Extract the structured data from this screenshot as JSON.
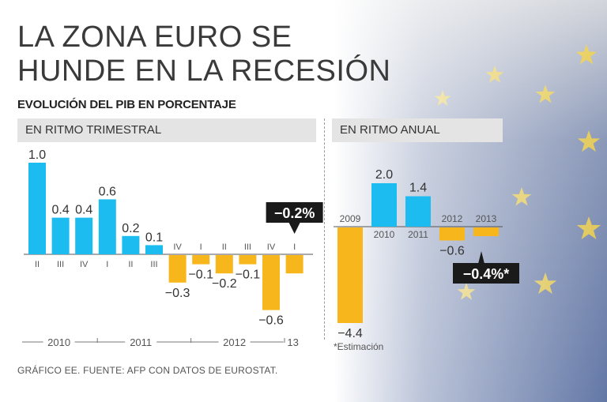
{
  "title": {
    "line1": "LA ZONA EURO SE",
    "line2": "HUNDE EN LA RECESIÓN"
  },
  "subtitle": "EVOLUCIÓN DEL PIB EN PORCENTAJE",
  "colors": {
    "positive": "#1cbcf0",
    "negative": "#f7b71c",
    "callout_bg": "#1a1a1a",
    "text": "#333333"
  },
  "chart_data": [
    {
      "type": "bar",
      "title": "EN RITMO TRIMESTRAL",
      "categories": [
        "II",
        "III",
        "IV",
        "I",
        "II",
        "III",
        "IV",
        "I",
        "II",
        "III",
        "IV",
        "I"
      ],
      "values": [
        1.0,
        0.4,
        0.4,
        0.6,
        0.2,
        0.1,
        -0.3,
        -0.1,
        -0.2,
        -0.1,
        -0.6,
        -0.2
      ],
      "value_labels": [
        "1.0",
        "0.4",
        "0.4",
        "0.6",
        "0.2",
        "0.1",
        "-0.3",
        "-0.1",
        "-0.2",
        "-0.1",
        "-0.6",
        ""
      ],
      "year_groups": [
        {
          "label": "2010",
          "from": 0,
          "to": 2
        },
        {
          "label": "2011",
          "from": 3,
          "to": 6
        },
        {
          "label": "2012",
          "from": 7,
          "to": 10
        },
        {
          "label": "13",
          "from": 11,
          "to": 11
        }
      ],
      "callout": {
        "index": 11,
        "text": "-0.2%"
      },
      "ylim": [
        -0.7,
        1.05
      ]
    },
    {
      "type": "bar",
      "title": "EN RITMO ANUAL",
      "categories": [
        "2009",
        "2010",
        "2011",
        "2012",
        "2013"
      ],
      "values": [
        -4.4,
        2.0,
        1.4,
        -0.6,
        -0.4
      ],
      "value_labels": [
        "-4.4",
        "2.0",
        "1.4",
        "-0.6",
        ""
      ],
      "callout": {
        "index": 4,
        "text": "-0.4%*"
      },
      "ylim": [
        -4.6,
        2.3
      ]
    }
  ],
  "note": "*Estimación",
  "source": "GRÁFICO EE. FUENTE: AFP CON DATOS DE EUROSTAT."
}
